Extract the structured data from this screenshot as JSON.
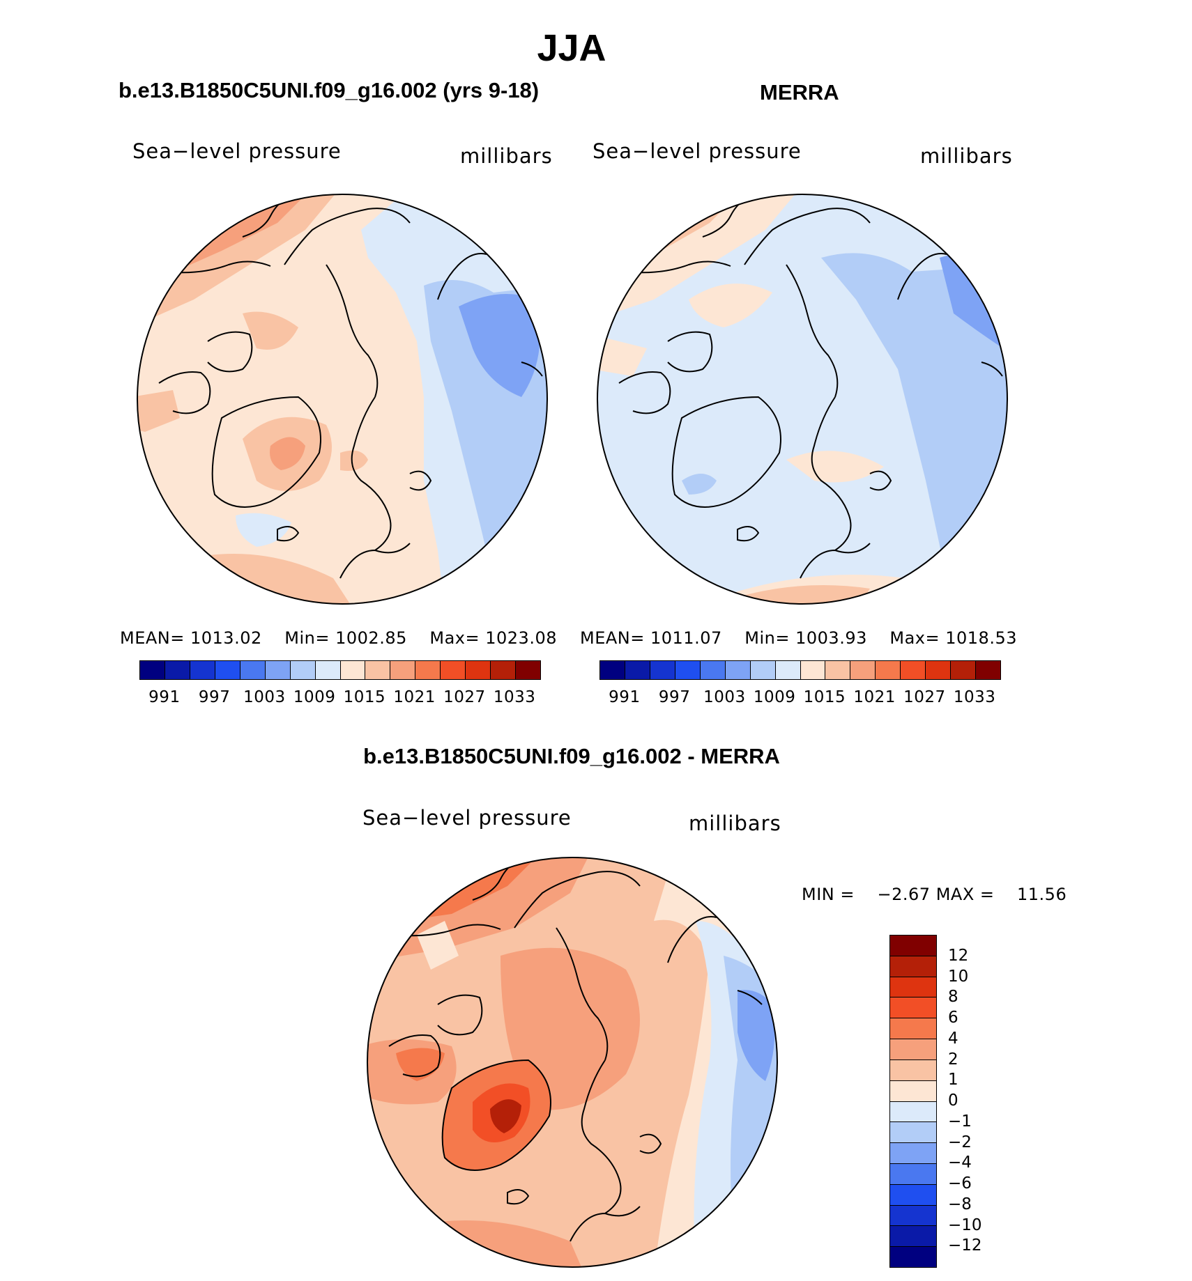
{
  "title": "JJA",
  "panels": {
    "model": {
      "title": "b.e13.B1850C5UNI.f09_g16.002 (yrs 9-18)",
      "variable": "Sea−level pressure",
      "units": "millibars",
      "mean_label": "MEAN=",
      "mean": "1013.02",
      "min_label": "Min=",
      "min": "1002.85",
      "max_label": "Max=",
      "max": "1023.08"
    },
    "obs": {
      "title": "MERRA",
      "variable": "Sea−level pressure",
      "units": "millibars",
      "mean_label": "MEAN=",
      "mean": "1011.07",
      "min_label": "Min=",
      "min": "1003.93",
      "max_label": "Max=",
      "max": "1018.53"
    },
    "diff": {
      "title": "b.e13.B1850C5UNI.f09_g16.002 - MERRA",
      "variable": "Sea−level pressure",
      "units": "millibars",
      "min_label": "MIN =",
      "min": "−2.67",
      "max_label": "MAX =",
      "max": "11.56"
    }
  },
  "colorbar_abs": {
    "colors": [
      "#000080",
      "#0a1aa8",
      "#1534d0",
      "#1f4ff0",
      "#4a78f0",
      "#7ea3f5",
      "#b2cdf7",
      "#dceafa",
      "#fde6d4",
      "#f9c3a4",
      "#f6a07c",
      "#f5794c",
      "#f24f26",
      "#de3410",
      "#b42008",
      "#800000"
    ],
    "labels": [
      "991",
      "997",
      "1003",
      "1009",
      "1015",
      "1021",
      "1027",
      "1033"
    ]
  },
  "colorbar_diff": {
    "colors": [
      "#800000",
      "#b42008",
      "#de3410",
      "#f24f26",
      "#f5794c",
      "#f6a07c",
      "#f9c3a4",
      "#fde6d4",
      "#dceafa",
      "#b2cdf7",
      "#7ea3f5",
      "#4a78f0",
      "#1f4ff0",
      "#1534d0",
      "#0a1aa8",
      "#000080"
    ],
    "labels": [
      "12",
      "10",
      "8",
      "6",
      "4",
      "2",
      "1",
      "0",
      "−1",
      "−2",
      "−4",
      "−6",
      "−8",
      "−10",
      "−12"
    ]
  }
}
